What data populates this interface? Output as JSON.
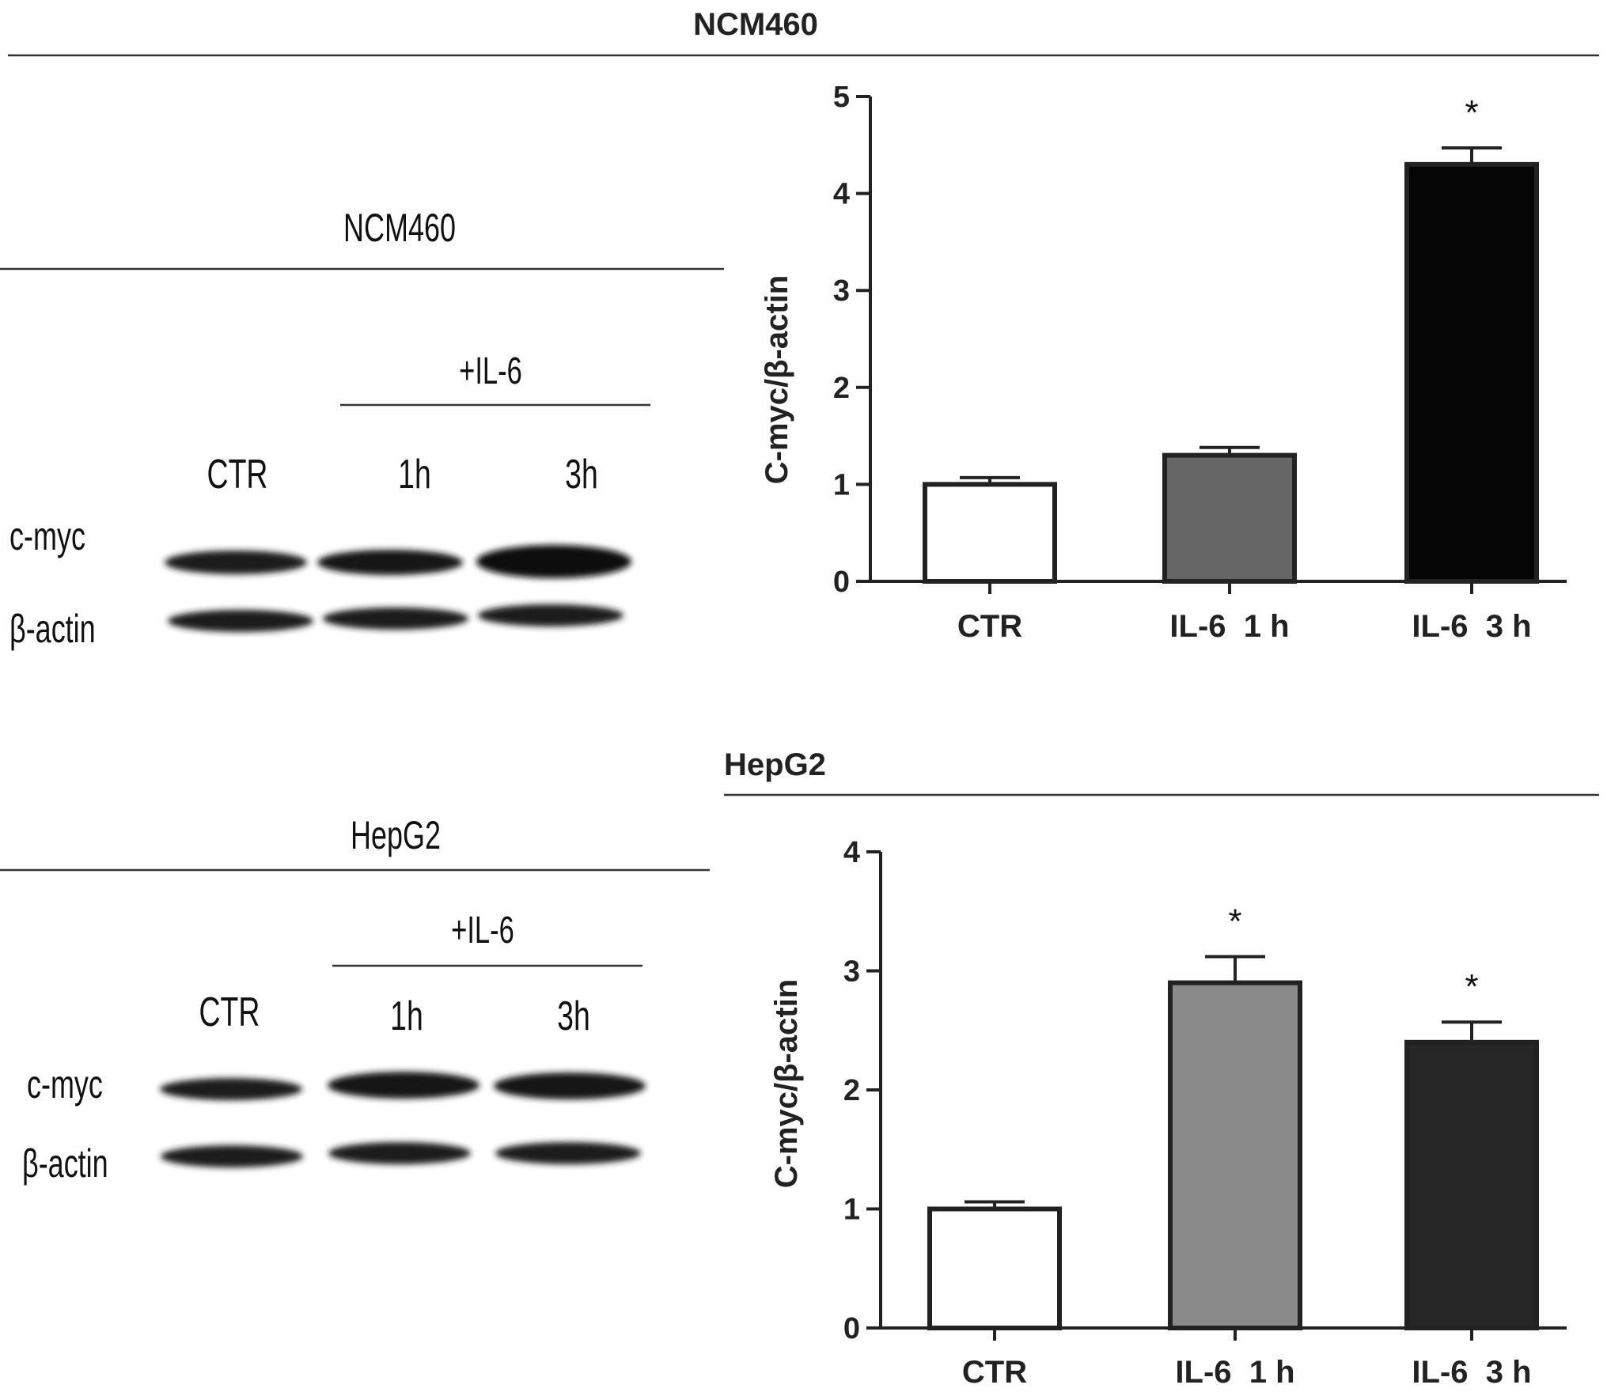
{
  "figure": {
    "top_title": "NCM460"
  },
  "blots": [
    {
      "cell_line": "NCM460",
      "treatment_header": "+IL-6",
      "lanes": [
        "CTR",
        "1h",
        "3h"
      ],
      "rows": [
        "c-myc",
        "β-actin"
      ]
    },
    {
      "cell_line": "HepG2",
      "treatment_header": "+IL-6",
      "lanes": [
        "CTR",
        "1h",
        "3h"
      ],
      "rows": [
        "c-myc",
        "β-actin"
      ]
    }
  ],
  "chart_data": [
    {
      "type": "bar",
      "title": "NCM460",
      "ylabel": "C-myc/β-actin",
      "xlabel": "",
      "ylim": [
        0,
        5
      ],
      "yticks": [
        0,
        1,
        2,
        3,
        4,
        5
      ],
      "categories": [
        "CTR",
        "IL-6  1 h",
        "IL-6  3 h"
      ],
      "values": [
        1.0,
        1.3,
        4.3
      ],
      "errors": [
        0.07,
        0.08,
        0.17
      ],
      "significance": [
        "",
        "",
        "*"
      ],
      "colors": [
        "#ffffff",
        "#666666",
        "#050505"
      ]
    },
    {
      "type": "bar",
      "title": "HepG2",
      "ylabel": "C-myc/β-actin",
      "xlabel": "",
      "ylim": [
        0,
        4
      ],
      "yticks": [
        0,
        1,
        2,
        3,
        4
      ],
      "categories": [
        "CTR",
        "IL-6  1 h",
        "IL-6  3 h"
      ],
      "values": [
        1.0,
        2.9,
        2.4
      ],
      "errors": [
        0.06,
        0.22,
        0.17
      ],
      "significance": [
        "",
        "*",
        "*"
      ],
      "colors": [
        "#ffffff",
        "#8a8a8a",
        "#262626"
      ]
    }
  ]
}
